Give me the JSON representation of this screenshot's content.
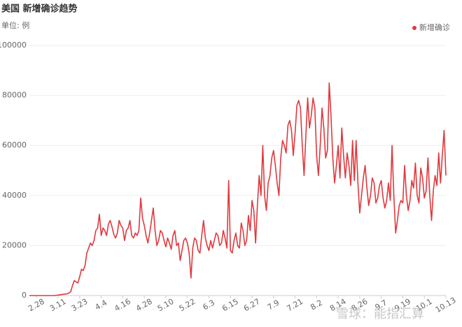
{
  "chart_data": {
    "type": "line",
    "title": "美国 新增确诊趋势",
    "subtitle": "单位: 例",
    "categories": [
      null,
      null,
      null,
      null,
      "2.28",
      null,
      null,
      null,
      null,
      null,
      null,
      null,
      null,
      null,
      null,
      null,
      "3.11",
      null,
      null,
      null,
      null,
      null,
      null,
      null,
      null,
      null,
      null,
      null,
      "3.23",
      null,
      null,
      null,
      null,
      null,
      null,
      null,
      null,
      null,
      null,
      null,
      "4.4",
      null,
      null,
      null,
      null,
      null,
      null,
      null,
      null,
      null,
      null,
      null,
      "4.16",
      null,
      null,
      null,
      null,
      null,
      null,
      null,
      null,
      null,
      null,
      null,
      "4.28",
      null,
      null,
      null,
      null,
      null,
      null,
      null,
      null,
      null,
      null,
      null,
      "5.10",
      null,
      null,
      null,
      null,
      null,
      null,
      null,
      null,
      null,
      null,
      null,
      "5.22",
      null,
      null,
      null,
      null,
      null,
      null,
      null,
      null,
      null,
      null,
      null,
      "6.3",
      null,
      null,
      null,
      null,
      null,
      null,
      null,
      null,
      null,
      null,
      null,
      "6.15",
      null,
      null,
      null,
      null,
      null,
      null,
      null,
      null,
      null,
      null,
      null,
      "6.27",
      null,
      null,
      null,
      null,
      null,
      null,
      null,
      null,
      null,
      null,
      null,
      "7.9",
      null,
      null,
      null,
      null,
      null,
      null,
      null,
      null,
      null,
      null,
      null,
      "7.21",
      null,
      null,
      null,
      null,
      null,
      null,
      null,
      null,
      null,
      null,
      null,
      "8.2",
      null,
      null,
      null,
      null,
      null,
      null,
      null,
      null,
      null,
      null,
      null,
      "8.14",
      null,
      null,
      null,
      null,
      null,
      null,
      null,
      null,
      null,
      null,
      null,
      "8.26",
      null,
      null,
      null,
      null,
      null,
      null,
      null,
      null,
      null,
      null,
      null,
      "9.7",
      null,
      null,
      null,
      null,
      null,
      null,
      null,
      null,
      null,
      null,
      null,
      "9.19",
      null,
      null,
      null,
      null,
      null,
      null,
      null,
      null,
      null,
      null,
      null,
      "10.1",
      null,
      null,
      null,
      null,
      null,
      null,
      null,
      null,
      null,
      null,
      null,
      "10.13"
    ],
    "series": [
      {
        "name": "新增确诊",
        "color": "#e0393e",
        "values": [
          0,
          0,
          0,
          0,
          0,
          0,
          0,
          0,
          0,
          0,
          0,
          0,
          0,
          0,
          0,
          100,
          200,
          300,
          400,
          500,
          600,
          700,
          1000,
          1500,
          4000,
          6000,
          5500,
          5000,
          7500,
          10500,
          10000,
          12000,
          17000,
          19000,
          21000,
          20000,
          22000,
          26000,
          27000,
          32500,
          24000,
          27000,
          26000,
          24000,
          28500,
          30000,
          27500,
          24500,
          23000,
          25000,
          30000,
          28000,
          27000,
          22000,
          26000,
          27000,
          30000,
          24000,
          23000,
          25000,
          24000,
          26000,
          39000,
          31000,
          28000,
          24000,
          21000,
          25000,
          30000,
          35000,
          26000,
          20000,
          22000,
          26000,
          25000,
          22000,
          19500,
          23000,
          21000,
          18500,
          24000,
          26000,
          20000,
          21000,
          14000,
          18000,
          22000,
          23000,
          21000,
          17000,
          7000,
          19000,
          23000,
          22000,
          18000,
          17000,
          24000,
          30000,
          23000,
          20000,
          18000,
          22000,
          19000,
          22000,
          25000,
          24000,
          20000,
          21000,
          26000,
          23000,
          19000,
          46000,
          18000,
          17000,
          22000,
          25000,
          20000,
          19000,
          29000,
          26000,
          20000,
          22000,
          32000,
          26000,
          38000,
          34000,
          21000,
          36000,
          48000,
          40000,
          60000,
          40000,
          34000,
          45000,
          48000,
          55000,
          58000,
          52000,
          45000,
          40000,
          55000,
          62000,
          60000,
          57000,
          68000,
          70000,
          66000,
          56000,
          65000,
          76000,
          78000,
          75000,
          60000,
          48000,
          64000,
          79000,
          67000,
          72000,
          79000,
          75000,
          56000,
          48000,
          60000,
          75000,
          67000,
          55000,
          58000,
          85000,
          72000,
          55000,
          45000,
          52000,
          60000,
          47000,
          67000,
          56000,
          47000,
          57000,
          52000,
          44000,
          62000,
          46000,
          62000,
          45000,
          33000,
          40000,
          47000,
          52000,
          43000,
          36000,
          40000,
          47000,
          45000,
          37000,
          39000,
          44000,
          46000,
          39000,
          35000,
          38000,
          45000,
          38000,
          60000,
          40000,
          25000,
          30000,
          36000,
          38000,
          37000,
          52000,
          40000,
          34000,
          38000,
          46000,
          43000,
          53000,
          40000,
          37000,
          51000,
          47000,
          39000,
          42000,
          55000,
          40000,
          30000,
          42000,
          48000,
          44000,
          57000,
          45000,
          56000,
          66000,
          48000
        ]
      }
    ],
    "ylim": [
      0,
      100000
    ],
    "yticks": [
      0,
      20000,
      40000,
      60000,
      80000,
      100000
    ],
    "grid": true,
    "legend": "top-right",
    "watermark": "雪球：能指汇算"
  }
}
